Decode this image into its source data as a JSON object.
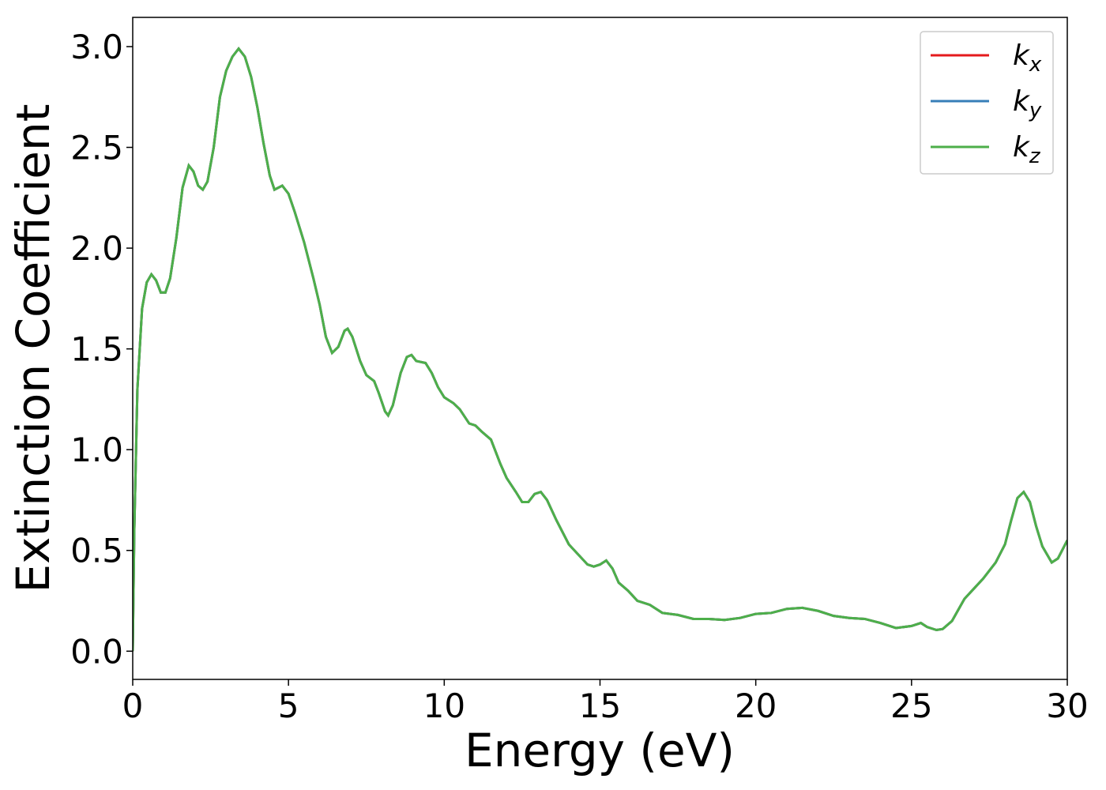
{
  "chart_data": {
    "type": "line",
    "xlabel": "Energy (eV)",
    "ylabel": "Extinction Coefficient",
    "x": [
      0,
      0.05,
      0.15,
      0.3,
      0.45,
      0.6,
      0.75,
      0.9,
      1.05,
      1.2,
      1.4,
      1.6,
      1.8,
      1.95,
      2.1,
      2.25,
      2.4,
      2.6,
      2.8,
      3.0,
      3.2,
      3.4,
      3.6,
      3.8,
      4.0,
      4.2,
      4.4,
      4.55,
      4.8,
      5.0,
      5.2,
      5.5,
      5.8,
      6.0,
      6.2,
      6.4,
      6.6,
      6.8,
      6.9,
      7.05,
      7.3,
      7.5,
      7.75,
      7.9,
      8.1,
      8.2,
      8.35,
      8.6,
      8.8,
      8.95,
      9.1,
      9.4,
      9.6,
      9.8,
      10.0,
      10.3,
      10.5,
      10.8,
      11.0,
      11.2,
      11.5,
      11.8,
      12.0,
      12.3,
      12.5,
      12.7,
      12.9,
      13.1,
      13.3,
      13.6,
      14.0,
      14.3,
      14.6,
      14.8,
      15.0,
      15.2,
      15.4,
      15.6,
      15.9,
      16.2,
      16.6,
      17.0,
      17.5,
      18.0,
      18.5,
      19.0,
      19.5,
      20.0,
      20.5,
      21.0,
      21.5,
      22.0,
      22.5,
      23.0,
      23.5,
      24.0,
      24.5,
      25.0,
      25.3,
      25.5,
      25.8,
      26.0,
      26.3,
      26.7,
      27.0,
      27.3,
      27.7,
      28.0,
      28.2,
      28.4,
      28.6,
      28.8,
      29.0,
      29.2,
      29.5,
      29.7,
      30.0
    ],
    "series": [
      {
        "name": "kx",
        "color": "#e41a1c",
        "values": [
          0,
          0.6,
          1.3,
          1.7,
          1.83,
          1.87,
          1.84,
          1.78,
          1.78,
          1.85,
          2.05,
          2.3,
          2.41,
          2.38,
          2.31,
          2.29,
          2.33,
          2.5,
          2.75,
          2.88,
          2.95,
          2.99,
          2.95,
          2.85,
          2.7,
          2.52,
          2.36,
          2.29,
          2.31,
          2.27,
          2.18,
          2.03,
          1.85,
          1.72,
          1.56,
          1.48,
          1.51,
          1.59,
          1.6,
          1.56,
          1.44,
          1.37,
          1.34,
          1.28,
          1.19,
          1.17,
          1.22,
          1.38,
          1.46,
          1.47,
          1.44,
          1.43,
          1.38,
          1.31,
          1.26,
          1.23,
          1.2,
          1.13,
          1.12,
          1.09,
          1.05,
          0.93,
          0.86,
          0.79,
          0.74,
          0.74,
          0.78,
          0.79,
          0.75,
          0.65,
          0.53,
          0.48,
          0.43,
          0.42,
          0.43,
          0.45,
          0.41,
          0.34,
          0.3,
          0.25,
          0.23,
          0.19,
          0.18,
          0.16,
          0.16,
          0.155,
          0.165,
          0.185,
          0.19,
          0.21,
          0.215,
          0.2,
          0.175,
          0.165,
          0.16,
          0.14,
          0.115,
          0.125,
          0.14,
          0.12,
          0.105,
          0.11,
          0.15,
          0.26,
          0.31,
          0.36,
          0.44,
          0.53,
          0.65,
          0.76,
          0.79,
          0.74,
          0.62,
          0.52,
          0.44,
          0.46,
          0.55
        ]
      },
      {
        "name": "ky",
        "color": "#377eb8",
        "values": [
          0,
          0.6,
          1.3,
          1.7,
          1.83,
          1.87,
          1.84,
          1.78,
          1.78,
          1.85,
          2.05,
          2.3,
          2.41,
          2.38,
          2.31,
          2.29,
          2.33,
          2.5,
          2.75,
          2.88,
          2.95,
          2.99,
          2.95,
          2.85,
          2.7,
          2.52,
          2.36,
          2.29,
          2.31,
          2.27,
          2.18,
          2.03,
          1.85,
          1.72,
          1.56,
          1.48,
          1.51,
          1.59,
          1.6,
          1.56,
          1.44,
          1.37,
          1.34,
          1.28,
          1.19,
          1.17,
          1.22,
          1.38,
          1.46,
          1.47,
          1.44,
          1.43,
          1.38,
          1.31,
          1.26,
          1.23,
          1.2,
          1.13,
          1.12,
          1.09,
          1.05,
          0.93,
          0.86,
          0.79,
          0.74,
          0.74,
          0.78,
          0.79,
          0.75,
          0.65,
          0.53,
          0.48,
          0.43,
          0.42,
          0.43,
          0.45,
          0.41,
          0.34,
          0.3,
          0.25,
          0.23,
          0.19,
          0.18,
          0.16,
          0.16,
          0.155,
          0.165,
          0.185,
          0.19,
          0.21,
          0.215,
          0.2,
          0.175,
          0.165,
          0.16,
          0.14,
          0.115,
          0.125,
          0.14,
          0.12,
          0.105,
          0.11,
          0.15,
          0.26,
          0.31,
          0.36,
          0.44,
          0.53,
          0.65,
          0.76,
          0.79,
          0.74,
          0.62,
          0.52,
          0.44,
          0.46,
          0.55
        ]
      },
      {
        "name": "kz",
        "color": "#4daf4a",
        "values": [
          0,
          0.6,
          1.3,
          1.7,
          1.83,
          1.87,
          1.84,
          1.78,
          1.78,
          1.85,
          2.05,
          2.3,
          2.41,
          2.38,
          2.31,
          2.29,
          2.33,
          2.5,
          2.75,
          2.88,
          2.95,
          2.99,
          2.95,
          2.85,
          2.7,
          2.52,
          2.36,
          2.29,
          2.31,
          2.27,
          2.18,
          2.03,
          1.85,
          1.72,
          1.56,
          1.48,
          1.51,
          1.59,
          1.6,
          1.56,
          1.44,
          1.37,
          1.34,
          1.28,
          1.19,
          1.17,
          1.22,
          1.38,
          1.46,
          1.47,
          1.44,
          1.43,
          1.38,
          1.31,
          1.26,
          1.23,
          1.2,
          1.13,
          1.12,
          1.09,
          1.05,
          0.93,
          0.86,
          0.79,
          0.74,
          0.74,
          0.78,
          0.79,
          0.75,
          0.65,
          0.53,
          0.48,
          0.43,
          0.42,
          0.43,
          0.45,
          0.41,
          0.34,
          0.3,
          0.25,
          0.23,
          0.19,
          0.18,
          0.16,
          0.16,
          0.155,
          0.165,
          0.185,
          0.19,
          0.21,
          0.215,
          0.2,
          0.175,
          0.165,
          0.16,
          0.14,
          0.115,
          0.125,
          0.14,
          0.12,
          0.105,
          0.11,
          0.15,
          0.26,
          0.31,
          0.36,
          0.44,
          0.53,
          0.65,
          0.76,
          0.79,
          0.74,
          0.62,
          0.52,
          0.44,
          0.46,
          0.55
        ]
      }
    ],
    "xlim": [
      0,
      30
    ],
    "xticks": [
      0,
      5,
      10,
      15,
      20,
      25,
      30
    ],
    "ylim": [
      -0.14,
      3.145
    ],
    "yticks": [
      {
        "value": 0,
        "label": "0.0"
      },
      0.5,
      {
        "value": 1,
        "label": "1.0"
      },
      1.5,
      {
        "value": 2,
        "label": "2.0"
      },
      2.5,
      {
        "value": 3,
        "label": "3.0"
      }
    ],
    "grid": false,
    "legend": "upper right"
  }
}
